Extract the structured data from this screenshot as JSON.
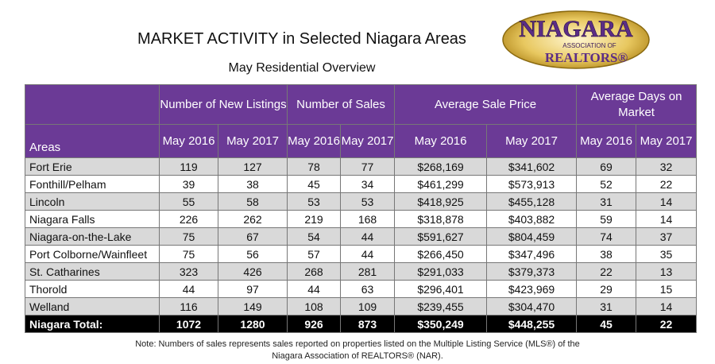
{
  "header": {
    "title": "MARKET ACTIVITY in Selected Niagara Areas",
    "subtitle": "May Residential Overview"
  },
  "logo": {
    "name": "NIAGARA",
    "line2": "ASSOCIATION OF",
    "line3": "REALTORS®",
    "colors": {
      "gold": "#c9a227",
      "purple": "#5b2d86"
    }
  },
  "table": {
    "areas_header": "Areas",
    "groups": [
      "Number of New Listings",
      "Number of Sales",
      "Average Sale Price",
      "Average Days on Market"
    ],
    "years": [
      "May 2016",
      "May 2017",
      "May 2016",
      "May 2017",
      "May 2016",
      "May 2017",
      "May 2016",
      "May 2017"
    ],
    "rows": [
      {
        "area": "Fort Erie",
        "values": [
          "119",
          "127",
          "78",
          "77",
          "$268,169",
          "$341,602",
          "69",
          "32"
        ]
      },
      {
        "area": "Fonthill/Pelham",
        "values": [
          "39",
          "38",
          "45",
          "34",
          "$461,299",
          "$573,913",
          "52",
          "22"
        ]
      },
      {
        "area": "Lincoln",
        "values": [
          "55",
          "58",
          "53",
          "53",
          "$418,925",
          "$455,128",
          "31",
          "14"
        ]
      },
      {
        "area": "Niagara Falls",
        "values": [
          "226",
          "262",
          "219",
          "168",
          "$318,878",
          "$403,882",
          "59",
          "14"
        ]
      },
      {
        "area": "Niagara-on-the-Lake",
        "values": [
          "75",
          "67",
          "54",
          "44",
          "$591,627",
          "$804,459",
          "74",
          "37"
        ]
      },
      {
        "area": "Port Colborne/Wainfleet",
        "values": [
          "75",
          "56",
          "57",
          "44",
          "$266,450",
          "$347,496",
          "38",
          "35"
        ]
      },
      {
        "area": "St. Catharines",
        "values": [
          "323",
          "426",
          "268",
          "281",
          "$291,033",
          "$379,373",
          "22",
          "13"
        ]
      },
      {
        "area": "Thorold",
        "values": [
          "44",
          "97",
          "44",
          "63",
          "$296,401",
          "$423,969",
          "29",
          "15"
        ]
      },
      {
        "area": "Welland",
        "values": [
          "116",
          "149",
          "108",
          "109",
          "$239,455",
          "$304,470",
          "31",
          "14"
        ]
      }
    ],
    "total": {
      "area": "Niagara Total:",
      "values": [
        "1072",
        "1280",
        "926",
        "873",
        "$350,249",
        "$448,255",
        "45",
        "22"
      ]
    }
  },
  "note": {
    "line1": "Note: Numbers of sales represents sales reported on properties listed on the Multiple Listing Service (MLS®) of the",
    "line2": "Niagara Association of REALTORS® (NAR)."
  },
  "colors": {
    "header_purple": "#6b3a96",
    "row_gray": "#d9d9d9",
    "total_black": "#000000"
  }
}
